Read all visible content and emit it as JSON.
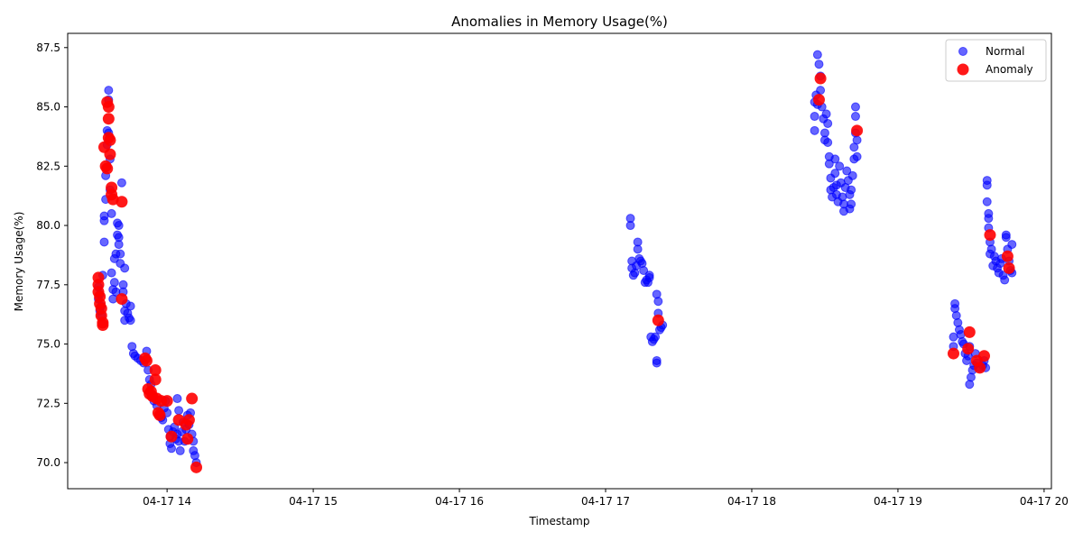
{
  "chart_data": {
    "type": "scatter",
    "title": "Anomalies in Memory Usage(%)",
    "xlabel": "Timestamp",
    "ylabel": "Memory Usage(%)",
    "xlim_hours": [
      13.32,
      20.05
    ],
    "ylim": [
      68.9,
      88.1
    ],
    "x_ticks": [
      {
        "hour": 14,
        "label": "04-17 14"
      },
      {
        "hour": 15,
        "label": "04-17 15"
      },
      {
        "hour": 16,
        "label": "04-17 16"
      },
      {
        "hour": 17,
        "label": "04-17 17"
      },
      {
        "hour": 18,
        "label": "04-17 18"
      },
      {
        "hour": 19,
        "label": "04-17 19"
      },
      {
        "hour": 20,
        "label": "04-17 20"
      }
    ],
    "y_ticks": [
      {
        "value": 70.0,
        "label": "70.0"
      },
      {
        "value": 72.5,
        "label": "72.5"
      },
      {
        "value": 75.0,
        "label": "75.0"
      },
      {
        "value": 77.5,
        "label": "77.5"
      },
      {
        "value": 80.0,
        "label": "80.0"
      },
      {
        "value": 82.5,
        "label": "82.5"
      },
      {
        "value": 85.0,
        "label": "85.0"
      },
      {
        "value": 87.5,
        "label": "87.5"
      }
    ],
    "legend_position": "top-right",
    "series": [
      {
        "name": "Normal",
        "color": "#0000ff",
        "points": [
          [
            13.53,
            77.4
          ],
          [
            13.53,
            76.9
          ],
          [
            13.54,
            76.4
          ],
          [
            13.54,
            77.1
          ],
          [
            13.55,
            76.2
          ],
          [
            13.55,
            76.6
          ],
          [
            13.56,
            77.9
          ],
          [
            13.57,
            80.2
          ],
          [
            13.57,
            80.4
          ],
          [
            13.57,
            79.3
          ],
          [
            13.58,
            81.1
          ],
          [
            13.58,
            82.1
          ],
          [
            13.59,
            83.4
          ],
          [
            13.59,
            84.0
          ],
          [
            13.6,
            85.3
          ],
          [
            13.6,
            85.7
          ],
          [
            13.6,
            83.9
          ],
          [
            13.61,
            82.8
          ],
          [
            13.61,
            81.5
          ],
          [
            13.62,
            80.5
          ],
          [
            13.62,
            78.0
          ],
          [
            13.63,
            77.3
          ],
          [
            13.63,
            76.9
          ],
          [
            13.64,
            78.6
          ],
          [
            13.64,
            77.6
          ],
          [
            13.65,
            77.2
          ],
          [
            13.65,
            78.8
          ],
          [
            13.66,
            79.6
          ],
          [
            13.66,
            80.1
          ],
          [
            13.67,
            80.0
          ],
          [
            13.67,
            79.5
          ],
          [
            13.67,
            79.2
          ],
          [
            13.68,
            78.8
          ],
          [
            13.68,
            78.4
          ],
          [
            13.69,
            81.8
          ],
          [
            13.7,
            77.5
          ],
          [
            13.7,
            77.2
          ],
          [
            13.71,
            76.4
          ],
          [
            13.71,
            76.0
          ],
          [
            13.71,
            78.2
          ],
          [
            13.72,
            76.7
          ],
          [
            13.73,
            76.3
          ],
          [
            13.74,
            76.1
          ],
          [
            13.75,
            76.0
          ],
          [
            13.75,
            76.6
          ],
          [
            13.76,
            74.9
          ],
          [
            13.77,
            74.6
          ],
          [
            13.78,
            74.5
          ],
          [
            13.8,
            74.4
          ],
          [
            13.82,
            74.3
          ],
          [
            13.84,
            74.2
          ],
          [
            13.86,
            74.7
          ],
          [
            13.87,
            73.9
          ],
          [
            13.88,
            73.5
          ],
          [
            13.89,
            73.3
          ],
          [
            13.9,
            72.8
          ],
          [
            13.91,
            72.6
          ],
          [
            13.93,
            72.4
          ],
          [
            13.95,
            72.0
          ],
          [
            13.96,
            71.9
          ],
          [
            13.97,
            71.8
          ],
          [
            13.98,
            72.3
          ],
          [
            13.99,
            72.6
          ],
          [
            14.0,
            72.1
          ],
          [
            14.01,
            71.4
          ],
          [
            14.02,
            71.1
          ],
          [
            14.02,
            70.8
          ],
          [
            14.03,
            70.6
          ],
          [
            14.04,
            71.3
          ],
          [
            14.05,
            71.5
          ],
          [
            14.06,
            71.0
          ],
          [
            14.07,
            71.2
          ],
          [
            14.07,
            72.7
          ],
          [
            14.08,
            72.2
          ],
          [
            14.08,
            70.9
          ],
          [
            14.09,
            70.5
          ],
          [
            14.1,
            71.3
          ],
          [
            14.11,
            71.7
          ],
          [
            14.12,
            70.9
          ],
          [
            14.13,
            71.4
          ],
          [
            14.14,
            72.0
          ],
          [
            14.15,
            71.6
          ],
          [
            14.16,
            72.1
          ],
          [
            14.17,
            71.2
          ],
          [
            14.18,
            70.9
          ],
          [
            14.18,
            70.5
          ],
          [
            14.19,
            70.3
          ],
          [
            14.2,
            70.0
          ],
          [
            17.17,
            80.3
          ],
          [
            17.17,
            80.0
          ],
          [
            17.18,
            78.5
          ],
          [
            17.18,
            78.2
          ],
          [
            17.19,
            77.9
          ],
          [
            17.2,
            78.0
          ],
          [
            17.21,
            78.3
          ],
          [
            17.22,
            79.3
          ],
          [
            17.22,
            79.0
          ],
          [
            17.23,
            78.6
          ],
          [
            17.24,
            78.5
          ],
          [
            17.25,
            78.4
          ],
          [
            17.26,
            78.1
          ],
          [
            17.27,
            77.6
          ],
          [
            17.28,
            77.7
          ],
          [
            17.29,
            77.6
          ],
          [
            17.3,
            77.9
          ],
          [
            17.3,
            77.8
          ],
          [
            17.31,
            75.3
          ],
          [
            17.32,
            75.1
          ],
          [
            17.33,
            75.2
          ],
          [
            17.34,
            75.3
          ],
          [
            17.35,
            74.3
          ],
          [
            17.35,
            74.2
          ],
          [
            17.35,
            77.1
          ],
          [
            17.36,
            76.8
          ],
          [
            17.36,
            76.3
          ],
          [
            17.37,
            75.6
          ],
          [
            17.38,
            75.7
          ],
          [
            17.39,
            75.8
          ],
          [
            18.43,
            84.0
          ],
          [
            18.43,
            84.6
          ],
          [
            18.43,
            85.2
          ],
          [
            18.44,
            85.5
          ],
          [
            18.45,
            85.1
          ],
          [
            18.45,
            87.2
          ],
          [
            18.46,
            86.8
          ],
          [
            18.47,
            86.3
          ],
          [
            18.47,
            85.7
          ],
          [
            18.48,
            85.0
          ],
          [
            18.49,
            84.5
          ],
          [
            18.5,
            83.6
          ],
          [
            18.5,
            83.9
          ],
          [
            18.51,
            84.7
          ],
          [
            18.52,
            84.3
          ],
          [
            18.52,
            83.5
          ],
          [
            18.53,
            82.9
          ],
          [
            18.53,
            82.6
          ],
          [
            18.54,
            82.0
          ],
          [
            18.54,
            81.5
          ],
          [
            18.55,
            81.2
          ],
          [
            18.56,
            81.6
          ],
          [
            18.57,
            82.8
          ],
          [
            18.57,
            82.2
          ],
          [
            18.58,
            81.7
          ],
          [
            18.58,
            81.3
          ],
          [
            18.59,
            81.0
          ],
          [
            18.6,
            82.5
          ],
          [
            18.61,
            81.8
          ],
          [
            18.62,
            81.2
          ],
          [
            18.63,
            80.6
          ],
          [
            18.63,
            80.9
          ],
          [
            18.64,
            81.6
          ],
          [
            18.65,
            82.3
          ],
          [
            18.66,
            81.9
          ],
          [
            18.67,
            81.3
          ],
          [
            18.67,
            80.7
          ],
          [
            18.68,
            80.9
          ],
          [
            18.68,
            81.5
          ],
          [
            18.69,
            82.1
          ],
          [
            18.7,
            82.8
          ],
          [
            18.7,
            83.3
          ],
          [
            18.71,
            83.9
          ],
          [
            18.71,
            84.6
          ],
          [
            18.71,
            85.0
          ],
          [
            18.72,
            83.6
          ],
          [
            18.72,
            82.9
          ],
          [
            19.38,
            75.3
          ],
          [
            19.38,
            74.9
          ],
          [
            19.39,
            76.5
          ],
          [
            19.39,
            76.7
          ],
          [
            19.4,
            76.2
          ],
          [
            19.41,
            75.9
          ],
          [
            19.42,
            75.6
          ],
          [
            19.43,
            75.4
          ],
          [
            19.44,
            75.1
          ],
          [
            19.45,
            75.0
          ],
          [
            19.46,
            74.6
          ],
          [
            19.47,
            74.3
          ],
          [
            19.48,
            74.5
          ],
          [
            19.49,
            74.9
          ],
          [
            19.49,
            73.3
          ],
          [
            19.5,
            73.6
          ],
          [
            19.51,
            73.9
          ],
          [
            19.52,
            74.1
          ],
          [
            19.53,
            74.6
          ],
          [
            19.54,
            74.2
          ],
          [
            19.56,
            74.0
          ],
          [
            19.58,
            74.1
          ],
          [
            19.59,
            74.3
          ],
          [
            19.6,
            74.0
          ],
          [
            19.61,
            81.9
          ],
          [
            19.61,
            81.7
          ],
          [
            19.61,
            81.0
          ],
          [
            19.62,
            80.5
          ],
          [
            19.62,
            80.3
          ],
          [
            19.62,
            79.9
          ],
          [
            19.63,
            79.3
          ],
          [
            19.63,
            78.8
          ],
          [
            19.64,
            79.0
          ],
          [
            19.65,
            78.3
          ],
          [
            19.66,
            78.7
          ],
          [
            19.67,
            78.5
          ],
          [
            19.68,
            78.2
          ],
          [
            19.69,
            78.0
          ],
          [
            19.7,
            78.4
          ],
          [
            19.71,
            78.6
          ],
          [
            19.72,
            77.9
          ],
          [
            19.73,
            77.7
          ],
          [
            19.74,
            79.6
          ],
          [
            19.74,
            79.5
          ],
          [
            19.75,
            79.0
          ],
          [
            19.76,
            78.5
          ],
          [
            19.77,
            78.1
          ],
          [
            19.78,
            79.2
          ],
          [
            19.78,
            78.0
          ]
        ]
      },
      {
        "name": "Anomaly",
        "color": "#ff0000",
        "points": [
          [
            13.53,
            77.8
          ],
          [
            13.53,
            77.5
          ],
          [
            13.53,
            77.2
          ],
          [
            13.54,
            77.0
          ],
          [
            13.54,
            76.7
          ],
          [
            13.55,
            76.5
          ],
          [
            13.55,
            76.2
          ],
          [
            13.56,
            75.9
          ],
          [
            13.56,
            75.8
          ],
          [
            13.57,
            83.3
          ],
          [
            13.58,
            82.5
          ],
          [
            13.59,
            82.4
          ],
          [
            13.59,
            85.2
          ],
          [
            13.6,
            85.0
          ],
          [
            13.6,
            84.5
          ],
          [
            13.6,
            83.7
          ],
          [
            13.61,
            83.6
          ],
          [
            13.61,
            83.0
          ],
          [
            13.62,
            81.6
          ],
          [
            13.62,
            81.3
          ],
          [
            13.63,
            81.1
          ],
          [
            13.69,
            81.0
          ],
          [
            13.69,
            76.9
          ],
          [
            13.85,
            74.4
          ],
          [
            13.86,
            74.3
          ],
          [
            13.87,
            73.1
          ],
          [
            13.88,
            72.9
          ],
          [
            13.89,
            73.0
          ],
          [
            13.9,
            72.8
          ],
          [
            13.92,
            73.9
          ],
          [
            13.92,
            73.5
          ],
          [
            13.93,
            72.7
          ],
          [
            13.94,
            72.1
          ],
          [
            13.95,
            72.0
          ],
          [
            13.96,
            72.6
          ],
          [
            14.0,
            72.6
          ],
          [
            14.03,
            71.1
          ],
          [
            14.08,
            71.8
          ],
          [
            14.13,
            71.6
          ],
          [
            14.14,
            71.0
          ],
          [
            14.15,
            71.8
          ],
          [
            14.17,
            72.7
          ],
          [
            14.2,
            69.8
          ],
          [
            17.36,
            76.0
          ],
          [
            18.46,
            85.3
          ],
          [
            18.47,
            86.2
          ],
          [
            18.72,
            84.0
          ],
          [
            19.38,
            74.6
          ],
          [
            19.48,
            74.8
          ],
          [
            19.49,
            75.5
          ],
          [
            19.54,
            74.3
          ],
          [
            19.56,
            74.0
          ],
          [
            19.59,
            74.5
          ],
          [
            19.63,
            79.6
          ],
          [
            19.75,
            78.7
          ],
          [
            19.76,
            78.2
          ]
        ]
      }
    ]
  }
}
